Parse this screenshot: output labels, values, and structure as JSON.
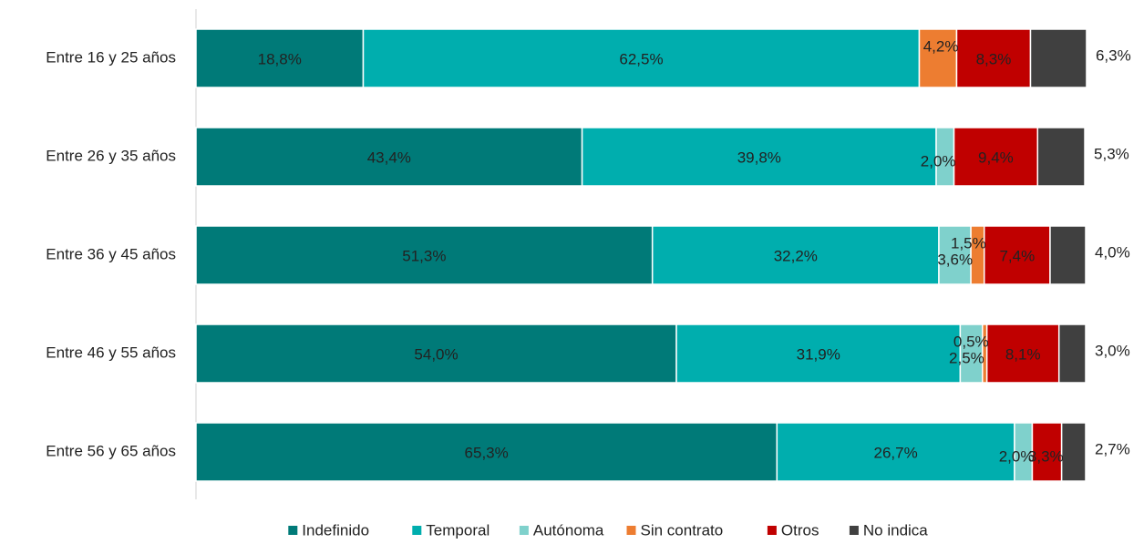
{
  "chart_data": {
    "type": "stacked_bar_horizontal",
    "categories": [
      "Entre 16 y 25 años",
      "Entre 26 y 35 años",
      "Entre 36 y 45 años",
      "Entre 46 y 55 años",
      "Entre 56 y 65 años"
    ],
    "xlim": [
      0,
      100
    ],
    "legend": "bottom",
    "series": [
      {
        "name": "Indefinido",
        "color": "#007a78",
        "values": [
          18.8,
          43.4,
          51.3,
          54.0,
          65.3
        ],
        "value_labels": [
          "18,8%",
          "43,4%",
          "51,3%",
          "54,0%",
          "65,3%"
        ]
      },
      {
        "name": "Temporal",
        "color": "#00aeae",
        "values": [
          62.5,
          39.8,
          32.2,
          31.9,
          26.7
        ],
        "value_labels": [
          "62,5%",
          "39,8%",
          "32,2%",
          "31,9%",
          "26,7%"
        ]
      },
      {
        "name": "Autónoma",
        "color": "#7fd1cc",
        "values": [
          0,
          2.0,
          3.6,
          2.5,
          2.0
        ],
        "value_labels": [
          null,
          "2,0%",
          "3,6%",
          "2,5%",
          "2,0%"
        ]
      },
      {
        "name": "Sin contrato",
        "color": "#ed7d31",
        "values": [
          4.2,
          0,
          1.5,
          0.5,
          0
        ],
        "value_labels": [
          "4,2%",
          null,
          "1,5%",
          "0,5%",
          null
        ]
      },
      {
        "name": "Otros",
        "color": "#c00000",
        "values": [
          8.3,
          9.4,
          7.4,
          8.1,
          3.3
        ],
        "value_labels": [
          "8,3%",
          "9,4%",
          "7,4%",
          "8,1%",
          "3,3%"
        ]
      },
      {
        "name": "No indica",
        "color": "#404040",
        "values": [
          6.3,
          5.3,
          4.0,
          3.0,
          2.7
        ],
        "value_labels": [
          "6,3%",
          "5,3%",
          "4,0%",
          "3,0%",
          "2,7%"
        ]
      }
    ]
  }
}
